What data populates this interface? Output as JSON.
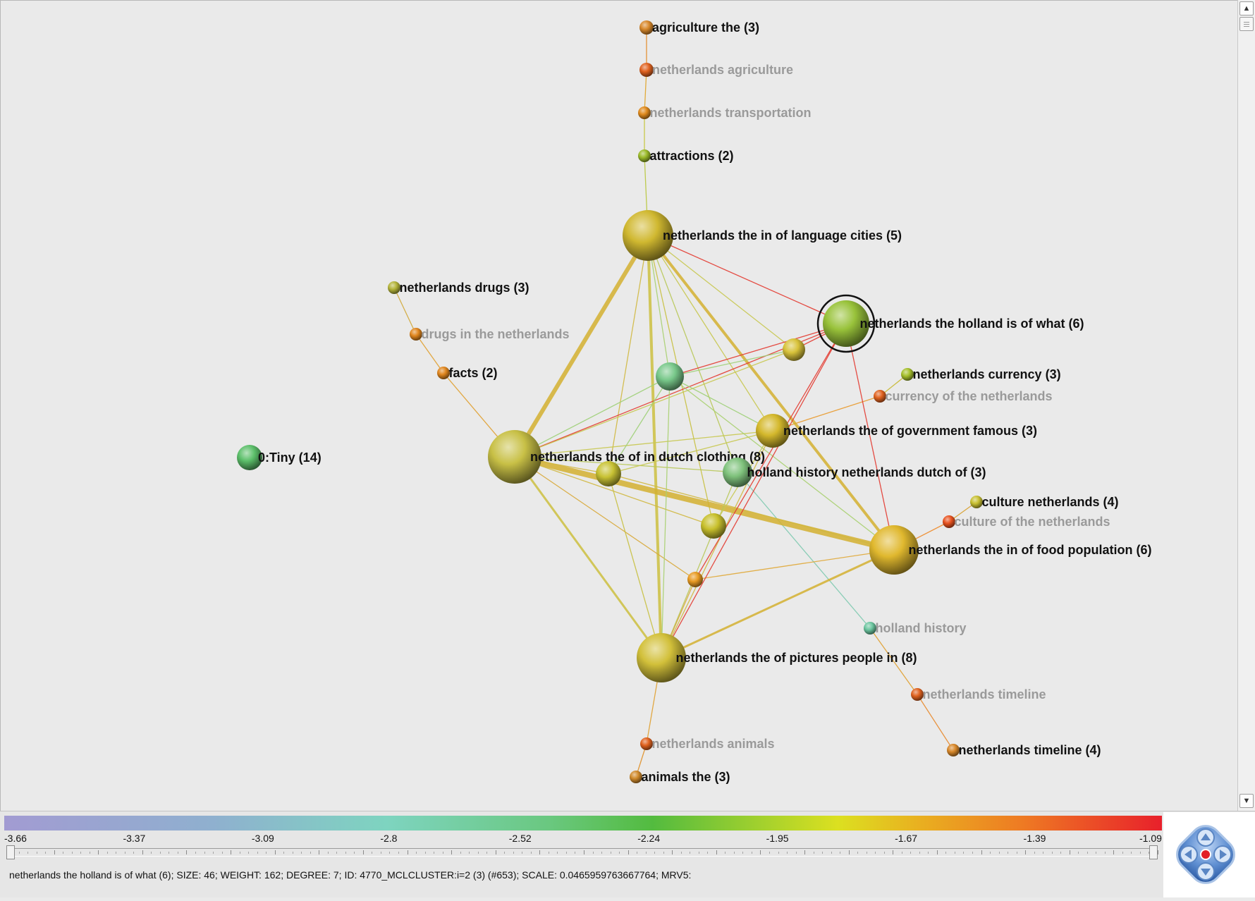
{
  "legend": {
    "ticks": [
      "-3.66",
      "-3.37",
      "-3.09",
      "-2.8",
      "-2.52",
      "-2.24",
      "-1.95",
      "-1.67",
      "-1.39",
      "-1.09"
    ]
  },
  "status": {
    "text": "netherlands the holland is of what (6);   SIZE: 46;   WEIGHT: 162;   DEGREE: 7;   ID: 4770_MCLCLUSTER:i=2 (3) (#653);   SCALE: 0.0465959763667764;   MRV5:"
  },
  "nodes": [
    {
      "label": "agriculture the (3)",
      "type": "primary",
      "color": "#d8882a"
    },
    {
      "label": "netherlands agriculture",
      "type": "secondary",
      "color": "#e0621f"
    },
    {
      "label": "netherlands transportation",
      "type": "secondary",
      "color": "#e08a1c"
    },
    {
      "label": "attractions (2)",
      "type": "primary",
      "color": "#9bbb2a"
    },
    {
      "label": "netherlands the in of language cities (5)",
      "type": "primary",
      "color": "#d0b830"
    },
    {
      "label": "netherlands drugs (3)",
      "type": "primary",
      "color": "#b4b43a"
    },
    {
      "label": "drugs in the netherlands",
      "type": "secondary",
      "color": "#e0861e"
    },
    {
      "label": "facts (2)",
      "type": "primary",
      "color": "#e0861e"
    },
    {
      "label": "netherlands the holland is of what (6)",
      "type": "primary",
      "color": "#98c23a"
    },
    {
      "label": "netherlands currency (3)",
      "type": "primary",
      "color": "#a6c02c"
    },
    {
      "label": "currency of the netherlands",
      "type": "secondary",
      "color": "#e0621f"
    },
    {
      "label": "netherlands the of government famous (3)",
      "type": "primary",
      "color": "#d4b82c"
    },
    {
      "label": "0:Tiny (14)",
      "type": "primary",
      "color": "#5cbf6a"
    },
    {
      "label": "netherlands the of in dutch clothing (8)",
      "type": "primary",
      "color": "#c8c046"
    },
    {
      "label": "holland history netherlands dutch of (3)",
      "type": "primary",
      "color": "#7fc27c"
    },
    {
      "label": "culture netherlands (4)",
      "type": "primary",
      "color": "#c8c032"
    },
    {
      "label": "culture of the netherlands",
      "type": "secondary",
      "color": "#e8521f"
    },
    {
      "label": "netherlands the in of food population (6)",
      "type": "primary",
      "color": "#e0b82e"
    },
    {
      "label": "holland history",
      "type": "secondary",
      "color": "#6cc6a0"
    },
    {
      "label": "netherlands the of pictures people in (8)",
      "type": "primary",
      "color": "#d2c03a"
    },
    {
      "label": "netherlands timeline",
      "type": "secondary",
      "color": "#e0621f"
    },
    {
      "label": "netherlands animals",
      "type": "secondary",
      "color": "#e0621f"
    },
    {
      "label": "animals the (3)",
      "type": "primary",
      "color": "#d08a2c"
    },
    {
      "label": "netherlands timeline (4)",
      "type": "primary",
      "color": "#d8882a"
    },
    {
      "label": "",
      "type": "unlabeled",
      "color": "#78c88a"
    },
    {
      "label": "",
      "type": "unlabeled",
      "color": "#d8c23a"
    },
    {
      "label": "",
      "type": "unlabeled",
      "color": "#c8c234"
    },
    {
      "label": "",
      "type": "unlabeled",
      "color": "#c8c02c"
    },
    {
      "label": "",
      "type": "unlabeled",
      "color": "#e89a22"
    }
  ],
  "edges": [
    {
      "from": 0,
      "to": 1,
      "color": "#e28a25"
    },
    {
      "from": 1,
      "to": 2,
      "color": "#e0a428"
    },
    {
      "from": 2,
      "to": 3,
      "color": "#c4c438"
    },
    {
      "from": 3,
      "to": 4,
      "color": "#b8c83c"
    },
    {
      "from": 5,
      "to": 6,
      "color": "#d2a838"
    },
    {
      "from": 6,
      "to": 7,
      "color": "#e0a030"
    },
    {
      "from": 7,
      "to": 13,
      "color": "#e0a030"
    },
    {
      "from": 9,
      "to": 10,
      "color": "#c8b830"
    },
    {
      "from": 10,
      "to": 11,
      "color": "#e99a2c"
    },
    {
      "from": 15,
      "to": 16,
      "color": "#d8a02c"
    },
    {
      "from": 16,
      "to": 17,
      "color": "#ee8a28"
    },
    {
      "from": 14,
      "to": 18,
      "color": "#7fcab0"
    },
    {
      "from": 18,
      "to": 20,
      "color": "#e0a030"
    },
    {
      "from": 20,
      "to": 23,
      "color": "#e88a2c"
    },
    {
      "from": 19,
      "to": 21,
      "color": "#e0a030"
    },
    {
      "from": 21,
      "to": 22,
      "color": "#e09028"
    },
    {
      "from": 4,
      "to": 13,
      "color": "#d4b030"
    },
    {
      "from": 4,
      "to": 8,
      "color": "#e33a30"
    },
    {
      "from": 4,
      "to": 17,
      "color": "#d4b030"
    },
    {
      "from": 4,
      "to": 19,
      "color": "#ccc040"
    },
    {
      "from": 4,
      "to": 11,
      "color": "#c8c850"
    },
    {
      "from": 4,
      "to": 14,
      "color": "#b8c858"
    },
    {
      "from": 4,
      "to": 24,
      "color": "#a8d070"
    },
    {
      "from": 4,
      "to": 25,
      "color": "#c8c850"
    },
    {
      "from": 4,
      "to": 27,
      "color": "#c8c040"
    },
    {
      "from": 4,
      "to": 26,
      "color": "#d0b840"
    },
    {
      "from": 13,
      "to": 17,
      "color": "#d4b030"
    },
    {
      "from": 13,
      "to": 19,
      "color": "#ccc040"
    },
    {
      "from": 13,
      "to": 11,
      "color": "#c8c850"
    },
    {
      "from": 13,
      "to": 8,
      "color": "#e33a30"
    },
    {
      "from": 13,
      "to": 24,
      "color": "#9ed078"
    },
    {
      "from": 13,
      "to": 26,
      "color": "#d0b840"
    },
    {
      "from": 13,
      "to": 27,
      "color": "#d0b840"
    },
    {
      "from": 13,
      "to": 28,
      "color": "#d8a838"
    },
    {
      "from": 13,
      "to": 25,
      "color": "#c8c850"
    },
    {
      "from": 13,
      "to": 14,
      "color": "#b8c858"
    },
    {
      "from": 17,
      "to": 19,
      "color": "#d4b030"
    },
    {
      "from": 17,
      "to": 8,
      "color": "#e33a30"
    },
    {
      "from": 17,
      "to": 24,
      "color": "#a8d070"
    },
    {
      "from": 17,
      "to": 26,
      "color": "#d0b840"
    },
    {
      "from": 17,
      "to": 28,
      "color": "#e0a838"
    },
    {
      "from": 19,
      "to": 8,
      "color": "#e33a30"
    },
    {
      "from": 19,
      "to": 11,
      "color": "#d0b840"
    },
    {
      "from": 19,
      "to": 14,
      "color": "#b8c858"
    },
    {
      "from": 19,
      "to": 26,
      "color": "#c8c040"
    },
    {
      "from": 19,
      "to": 28,
      "color": "#d8a838"
    },
    {
      "from": 19,
      "to": 24,
      "color": "#a8d070"
    },
    {
      "from": 8,
      "to": 25,
      "color": "#e33a30"
    },
    {
      "from": 8,
      "to": 28,
      "color": "#e33a30"
    },
    {
      "from": 8,
      "to": 24,
      "color": "#e33a30"
    },
    {
      "from": 24,
      "to": 25,
      "color": "#9ed078"
    },
    {
      "from": 24,
      "to": 11,
      "color": "#9ed078"
    },
    {
      "from": 24,
      "to": 26,
      "color": "#9ed078"
    },
    {
      "from": 27,
      "to": 11,
      "color": "#c8c850"
    },
    {
      "from": 26,
      "to": 11,
      "color": "#c8c850"
    }
  ]
}
